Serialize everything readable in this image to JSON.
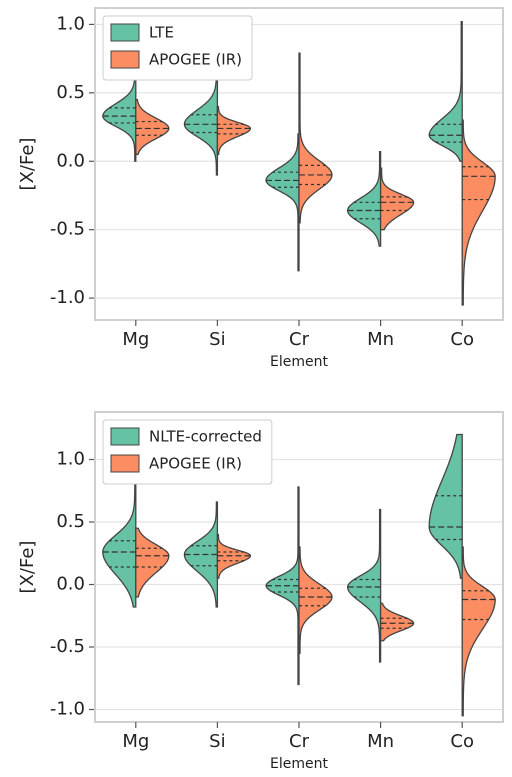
{
  "chart_data": [
    {
      "type": "violin",
      "x_label": "Element",
      "y_label": "[X/Fe]",
      "categories": [
        "Mg",
        "Si",
        "Cr",
        "Mn",
        "Co"
      ],
      "series": [
        {
          "name": "LTE",
          "color": "#66c2a5",
          "min": [
            0.0,
            -0.1,
            -0.8,
            -0.62,
            0.0
          ],
          "q1": [
            0.28,
            0.21,
            -0.19,
            -0.42,
            0.14
          ],
          "median": [
            0.33,
            0.27,
            -0.14,
            -0.36,
            0.19
          ],
          "q3": [
            0.39,
            0.34,
            -0.08,
            -0.3,
            0.27
          ],
          "max": [
            0.59,
            0.65,
            0.2,
            0.07,
            1.02
          ]
        },
        {
          "name": "APOGEE (IR)",
          "color": "#fc8d62",
          "min": [
            0.05,
            0.05,
            -0.45,
            -0.5,
            -1.05
          ],
          "q1": [
            0.19,
            0.2,
            -0.17,
            -0.36,
            -0.28
          ],
          "median": [
            0.24,
            0.24,
            -0.1,
            -0.3,
            -0.11
          ],
          "q3": [
            0.29,
            0.27,
            -0.03,
            -0.26,
            -0.04
          ],
          "max": [
            0.45,
            0.4,
            0.79,
            -0.05,
            0.3
          ]
        }
      ],
      "ylim": [
        -1.16,
        1.12
      ],
      "yticks": [
        {
          "value": -1,
          "label": "-1.0"
        },
        -0.5,
        {
          "value": 0,
          "label": "0.0"
        },
        0.5,
        {
          "value": 1,
          "label": "1.0"
        }
      ],
      "grid": true,
      "legend": "upper left"
    },
    {
      "type": "violin",
      "x_label": "Element",
      "y_label": "[X/Fe]",
      "categories": [
        "Mg",
        "Si",
        "Cr",
        "Mn",
        "Co"
      ],
      "series": [
        {
          "name": "NLTE-corrected",
          "color": "#66c2a5",
          "min": [
            -0.18,
            -0.18,
            -0.8,
            -0.62,
            0.05
          ],
          "q1": [
            0.14,
            0.15,
            -0.06,
            -0.1,
            0.36
          ],
          "median": [
            0.26,
            0.24,
            -0.01,
            -0.02,
            0.46
          ],
          "q3": [
            0.35,
            0.31,
            0.04,
            0.04,
            0.71
          ],
          "max": [
            0.81,
            0.66,
            0.78,
            0.6,
            1.2
          ]
        },
        {
          "name": "APOGEE (IR)",
          "color": "#fc8d62",
          "min": [
            -0.1,
            0.05,
            -0.55,
            -0.45,
            -1.05
          ],
          "q1": [
            0.14,
            0.19,
            -0.17,
            -0.35,
            -0.28
          ],
          "median": [
            0.23,
            0.23,
            -0.1,
            -0.31,
            -0.12
          ],
          "q3": [
            0.29,
            0.26,
            -0.03,
            -0.27,
            -0.05
          ],
          "max": [
            0.45,
            0.4,
            0.3,
            -0.15,
            0.3
          ]
        }
      ],
      "ylim": [
        -1.1,
        1.38
      ],
      "yticks": [
        {
          "value": -1,
          "label": "-1.0"
        },
        -0.5,
        {
          "value": 0,
          "label": "0.0"
        },
        0.5,
        {
          "value": 1,
          "label": "1.0"
        }
      ],
      "grid": true,
      "legend": "upper left"
    }
  ]
}
